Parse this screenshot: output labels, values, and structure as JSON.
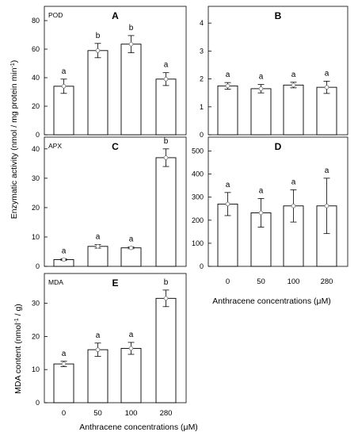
{
  "figure": {
    "shared_ylabel_enzyme": "Enzymatic activity (nmol / mg protein  min",
    "shared_ylabel_enzyme_sup": "-1",
    "shared_ylabel_enzyme_close": ")",
    "xlabel": "Anthracene concentrations (μM)"
  },
  "chart_data": [
    {
      "panel": "A",
      "type": "bar",
      "corner_label": "POD",
      "categories": [
        "0",
        "50",
        "100",
        "280"
      ],
      "values": [
        34,
        59,
        63.5,
        39
      ],
      "errors": [
        5,
        5,
        6,
        4.5
      ],
      "letters": [
        "a",
        "b",
        "b",
        "a"
      ],
      "ylim": [
        0,
        90
      ],
      "yticks": [
        0,
        20,
        40,
        60,
        80
      ]
    },
    {
      "panel": "B",
      "type": "bar",
      "corner_label": "",
      "categories": [
        "0",
        "50",
        "100",
        "280"
      ],
      "values": [
        1.75,
        1.65,
        1.78,
        1.7
      ],
      "errors": [
        0.12,
        0.15,
        0.1,
        0.22
      ],
      "letters": [
        "a",
        "a",
        "a",
        "a"
      ],
      "ylim": [
        0,
        4.6
      ],
      "yticks": [
        0,
        1,
        2,
        3,
        4
      ]
    },
    {
      "panel": "C",
      "type": "bar",
      "corner_label": "APX",
      "categories": [
        "0",
        "50",
        "100",
        "280"
      ],
      "values": [
        2.3,
        6.8,
        6.3,
        37
      ],
      "errors": [
        0.3,
        0.6,
        0.3,
        3
      ],
      "letters": [
        "a",
        "a",
        "a",
        "b"
      ],
      "ylim": [
        0,
        44
      ],
      "yticks": [
        0,
        10,
        20,
        30,
        40
      ]
    },
    {
      "panel": "D",
      "type": "bar",
      "corner_label": "",
      "categories": [
        "0",
        "50",
        "100",
        "280"
      ],
      "values": [
        270,
        232,
        262,
        262
      ],
      "errors": [
        50,
        62,
        70,
        120
      ],
      "letters": [
        "a",
        "a",
        "a",
        "a"
      ],
      "ylim": [
        0,
        560
      ],
      "yticks": [
        0,
        100,
        200,
        300,
        400,
        500
      ]
    },
    {
      "panel": "E",
      "type": "bar",
      "corner_label": "MDA",
      "categories": [
        "0",
        "50",
        "100",
        "280"
      ],
      "values": [
        11.7,
        16,
        16.4,
        31.5
      ],
      "errors": [
        0.8,
        2,
        1.8,
        2.5
      ],
      "letters": [
        "a",
        "a",
        "a",
        "b"
      ],
      "ylim": [
        0,
        39
      ],
      "yticks": [
        0,
        10,
        20,
        30
      ],
      "ylabel": "MDA content (nmol",
      "ylabel_sup": "-1",
      "ylabel_close": " / g)",
      "show_xticks": true
    }
  ]
}
